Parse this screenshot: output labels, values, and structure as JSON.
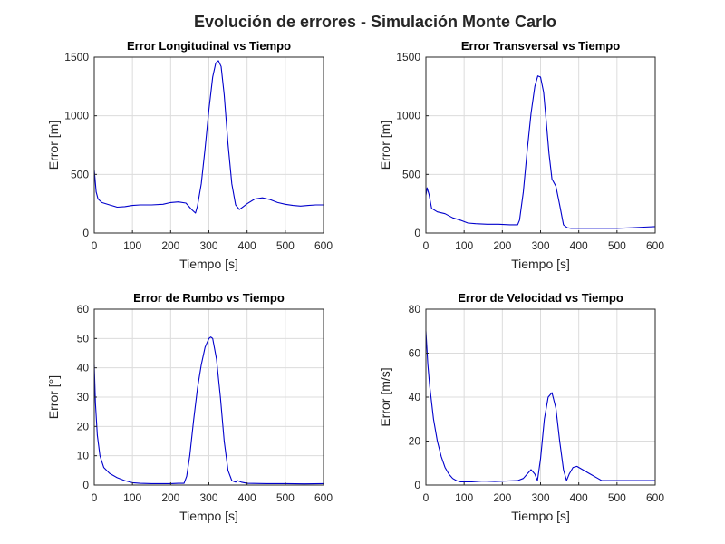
{
  "figure": {
    "title": "Evolución de errores - Simulación Monte Carlo",
    "line_color": "#0000cc",
    "grid_color": "#dcdcdc",
    "axis_color": "#262626"
  },
  "chart_data": [
    {
      "type": "line",
      "title": "Error Longitudinal vs Tiempo",
      "xlabel": "Tiempo [s]",
      "ylabel": "Error [m]",
      "xlim": [
        0,
        600
      ],
      "ylim": [
        0,
        1500
      ],
      "xticks": [
        0,
        100,
        200,
        300,
        400,
        500,
        600
      ],
      "yticks": [
        0,
        500,
        1000,
        1500
      ],
      "grid": true,
      "series": [
        {
          "x": [
            0,
            5,
            10,
            20,
            40,
            60,
            80,
            100,
            120,
            150,
            180,
            200,
            220,
            240,
            255,
            265,
            270,
            280,
            290,
            300,
            310,
            318,
            325,
            332,
            340,
            350,
            360,
            370,
            380,
            390,
            400,
            420,
            440,
            460,
            480,
            500,
            520,
            540,
            560,
            580,
            600
          ],
          "y": [
            540,
            350,
            290,
            260,
            240,
            220,
            225,
            235,
            240,
            240,
            245,
            260,
            265,
            255,
            200,
            170,
            230,
            420,
            720,
            1050,
            1330,
            1450,
            1470,
            1420,
            1180,
            760,
            420,
            240,
            200,
            225,
            250,
            290,
            300,
            285,
            260,
            245,
            235,
            230,
            235,
            240,
            240
          ]
        }
      ]
    },
    {
      "type": "line",
      "title": "Error Transversal vs Tiempo",
      "xlabel": "Tiempo [s]",
      "ylabel": "Error [m]",
      "xlim": [
        0,
        600
      ],
      "ylim": [
        0,
        1500
      ],
      "xticks": [
        0,
        100,
        200,
        300,
        400,
        500,
        600
      ],
      "yticks": [
        0,
        500,
        1000,
        1500
      ],
      "grid": true,
      "series": [
        {
          "x": [
            0,
            3,
            8,
            15,
            30,
            50,
            70,
            90,
            110,
            130,
            160,
            190,
            220,
            240,
            245,
            255,
            265,
            275,
            285,
            293,
            300,
            308,
            315,
            322,
            330,
            340,
            350,
            360,
            370,
            380,
            400,
            430,
            460,
            500,
            540,
            570,
            600
          ],
          "y": [
            320,
            385,
            330,
            210,
            180,
            165,
            130,
            110,
            85,
            80,
            75,
            75,
            70,
            70,
            110,
            350,
            700,
            1020,
            1250,
            1340,
            1330,
            1200,
            950,
            680,
            460,
            400,
            240,
            70,
            45,
            40,
            40,
            40,
            40,
            40,
            45,
            50,
            55
          ]
        }
      ]
    },
    {
      "type": "line",
      "title": "Error de Rumbo vs Tiempo",
      "xlabel": "Tiempo [s]",
      "ylabel": "Error [°]",
      "xlim": [
        0,
        600
      ],
      "ylim": [
        0,
        60
      ],
      "xticks": [
        0,
        100,
        200,
        300,
        400,
        500,
        600
      ],
      "yticks": [
        0,
        10,
        20,
        30,
        40,
        50,
        60
      ],
      "grid": true,
      "series": [
        {
          "x": [
            0,
            3,
            8,
            15,
            25,
            40,
            60,
            80,
            100,
            120,
            150,
            180,
            200,
            220,
            235,
            242,
            250,
            260,
            270,
            280,
            290,
            300,
            305,
            310,
            320,
            330,
            340,
            350,
            360,
            370,
            375,
            385,
            400,
            450,
            500,
            550,
            600
          ],
          "y": [
            41,
            28,
            17,
            10,
            6,
            4,
            2.5,
            1.5,
            0.8,
            0.6,
            0.5,
            0.5,
            0.5,
            0.6,
            0.6,
            3,
            10,
            22,
            33,
            41,
            47,
            50,
            50.5,
            50,
            43,
            30,
            15,
            5,
            1.5,
            1,
            1.5,
            1,
            0.6,
            0.5,
            0.5,
            0.4,
            0.5
          ]
        }
      ]
    },
    {
      "type": "line",
      "title": "Error de Velocidad vs Tiempo",
      "xlabel": "Tiempo [s]",
      "ylabel": "Error [m/s]",
      "xlim": [
        0,
        600
      ],
      "ylim": [
        0,
        80
      ],
      "xticks": [
        0,
        100,
        200,
        300,
        400,
        500,
        600
      ],
      "yticks": [
        0,
        20,
        40,
        60,
        80
      ],
      "grid": true,
      "series": [
        {
          "x": [
            0,
            5,
            10,
            20,
            30,
            40,
            50,
            60,
            70,
            80,
            90,
            100,
            120,
            150,
            180,
            210,
            240,
            255,
            265,
            275,
            285,
            292,
            300,
            310,
            320,
            330,
            340,
            350,
            360,
            368,
            375,
            385,
            395,
            410,
            430,
            450,
            460,
            500,
            550,
            600
          ],
          "y": [
            70,
            55,
            45,
            30,
            20,
            13,
            8,
            5,
            3,
            2,
            1.5,
            1.5,
            1.5,
            1.8,
            1.6,
            1.8,
            2,
            3,
            5,
            7,
            5,
            2,
            12,
            30,
            40,
            42,
            35,
            20,
            7,
            2,
            5,
            8,
            8.5,
            7,
            5,
            3,
            2,
            2,
            2,
            2
          ]
        }
      ]
    }
  ]
}
